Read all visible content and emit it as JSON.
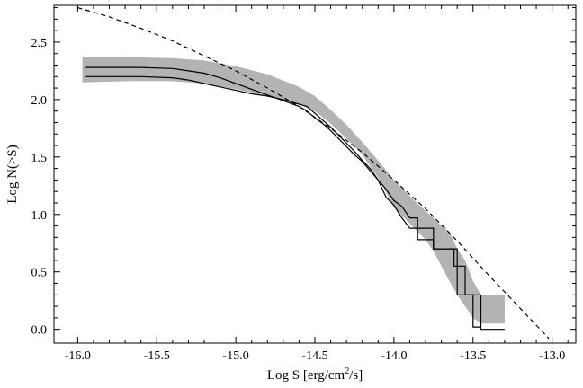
{
  "chart_data": {
    "type": "line",
    "title": "",
    "xlabel_main": "Log S [erg/cm",
    "xlabel_sup": "2",
    "xlabel_tail": "/s]",
    "ylabel": "Log N(>S)",
    "xlim": [
      -16.15,
      -12.85
    ],
    "ylim": [
      -0.12,
      2.82
    ],
    "xticks": [
      {
        "v": -16.0,
        "label": "-16.0"
      },
      {
        "v": -15.5,
        "label": "-15.5"
      },
      {
        "v": -15.0,
        "label": "-15.0"
      },
      {
        "v": -14.5,
        "label": "-14.5"
      },
      {
        "v": -14.0,
        "label": "-14.0"
      },
      {
        "v": -13.5,
        "label": "-13.5"
      },
      {
        "v": -13.0,
        "label": "-13.0"
      }
    ],
    "yticks": [
      {
        "v": 0.0,
        "label": "0.0"
      },
      {
        "v": 0.5,
        "label": "0.5"
      },
      {
        "v": 1.0,
        "label": "1.0"
      },
      {
        "v": 1.5,
        "label": "1.5"
      },
      {
        "v": 2.0,
        "label": "2.0"
      },
      {
        "v": 2.5,
        "label": "2.5"
      }
    ],
    "grid": false,
    "band": {
      "color": "#b3b3b3",
      "upper": [
        [
          -15.97,
          2.37
        ],
        [
          -15.7,
          2.37
        ],
        [
          -15.4,
          2.36
        ],
        [
          -15.2,
          2.34
        ],
        [
          -15.0,
          2.29
        ],
        [
          -14.8,
          2.22
        ],
        [
          -14.6,
          2.11
        ],
        [
          -14.5,
          2.03
        ],
        [
          -14.4,
          1.91
        ],
        [
          -14.3,
          1.78
        ],
        [
          -14.2,
          1.63
        ],
        [
          -14.1,
          1.47
        ],
        [
          -14.0,
          1.3
        ],
        [
          -13.9,
          1.16
        ],
        [
          -13.8,
          1.03
        ],
        [
          -13.75,
          0.97
        ],
        [
          -13.7,
          0.9
        ],
        [
          -13.65,
          0.85
        ],
        [
          -13.6,
          0.7
        ],
        [
          -13.55,
          0.6
        ],
        [
          -13.5,
          0.42
        ],
        [
          -13.45,
          0.3
        ],
        [
          -13.4,
          0.3
        ],
        [
          -13.35,
          0.3
        ],
        [
          -13.3,
          0.3
        ],
        [
          -13.3,
          0.05
        ]
      ],
      "lower": [
        [
          -15.97,
          2.15
        ],
        [
          -15.7,
          2.16
        ],
        [
          -15.4,
          2.16
        ],
        [
          -15.2,
          2.14
        ],
        [
          -15.0,
          2.09
        ],
        [
          -14.8,
          2.03
        ],
        [
          -14.6,
          1.96
        ],
        [
          -14.5,
          1.9
        ],
        [
          -14.4,
          1.79
        ],
        [
          -14.3,
          1.66
        ],
        [
          -14.2,
          1.52
        ],
        [
          -14.1,
          1.32
        ],
        [
          -14.0,
          1.06
        ],
        [
          -13.9,
          0.92
        ],
        [
          -13.8,
          0.78
        ],
        [
          -13.75,
          0.68
        ],
        [
          -13.7,
          0.55
        ],
        [
          -13.65,
          0.42
        ],
        [
          -13.6,
          0.3
        ],
        [
          -13.55,
          0.2
        ],
        [
          -13.5,
          0.1
        ],
        [
          -13.45,
          0.05
        ],
        [
          -13.4,
          0.05
        ],
        [
          -13.35,
          0.05
        ],
        [
          -13.3,
          0.05
        ]
      ]
    },
    "series": [
      {
        "style": "solid",
        "points": [
          [
            -15.95,
            2.28
          ],
          [
            -15.6,
            2.28
          ],
          [
            -15.4,
            2.27
          ],
          [
            -15.3,
            2.25
          ],
          [
            -15.2,
            2.23
          ],
          [
            -15.1,
            2.19
          ],
          [
            -15.0,
            2.14
          ],
          [
            -14.9,
            2.09
          ],
          [
            -14.8,
            2.04
          ],
          [
            -14.7,
            1.99
          ],
          [
            -14.6,
            1.94
          ],
          [
            -14.55,
            1.9
          ],
          [
            -14.5,
            1.84
          ],
          [
            -14.45,
            1.79
          ],
          [
            -14.4,
            1.73
          ],
          [
            -14.35,
            1.66
          ],
          [
            -14.3,
            1.59
          ],
          [
            -14.25,
            1.52
          ],
          [
            -14.2,
            1.46
          ],
          [
            -14.15,
            1.38
          ],
          [
            -14.1,
            1.3
          ],
          [
            -14.05,
            1.22
          ],
          [
            -14.0,
            1.12
          ],
          [
            -13.95,
            1.07
          ],
          [
            -13.9,
            0.97
          ],
          [
            -13.85,
            0.97
          ],
          [
            -13.85,
            0.88
          ],
          [
            -13.75,
            0.88
          ],
          [
            -13.75,
            0.7
          ],
          [
            -13.62,
            0.7
          ],
          [
            -13.62,
            0.55
          ],
          [
            -13.55,
            0.55
          ],
          [
            -13.55,
            0.3
          ],
          [
            -13.45,
            0.3
          ],
          [
            -13.45,
            0.0
          ],
          [
            -13.3,
            0.0
          ]
        ]
      },
      {
        "style": "solid",
        "points": [
          [
            -15.95,
            2.2
          ],
          [
            -15.6,
            2.2
          ],
          [
            -15.4,
            2.19
          ],
          [
            -15.3,
            2.17
          ],
          [
            -15.2,
            2.14
          ],
          [
            -15.1,
            2.11
          ],
          [
            -15.0,
            2.08
          ],
          [
            -14.9,
            2.05
          ],
          [
            -14.8,
            2.03
          ],
          [
            -14.7,
            2.0
          ],
          [
            -14.65,
            1.98
          ],
          [
            -14.6,
            1.96
          ],
          [
            -14.55,
            1.94
          ],
          [
            -14.5,
            1.88
          ],
          [
            -14.45,
            1.82
          ],
          [
            -14.4,
            1.76
          ],
          [
            -14.35,
            1.69
          ],
          [
            -14.3,
            1.62
          ],
          [
            -14.25,
            1.55
          ],
          [
            -14.2,
            1.47
          ],
          [
            -14.15,
            1.4
          ],
          [
            -14.1,
            1.3
          ],
          [
            -14.05,
            1.15
          ],
          [
            -14.0,
            1.08
          ],
          [
            -13.95,
            0.97
          ],
          [
            -13.9,
            0.88
          ],
          [
            -13.85,
            0.88
          ],
          [
            -13.85,
            0.78
          ],
          [
            -13.75,
            0.78
          ],
          [
            -13.75,
            0.7
          ],
          [
            -13.6,
            0.7
          ],
          [
            -13.6,
            0.3
          ],
          [
            -13.5,
            0.3
          ],
          [
            -13.5,
            0.02
          ],
          [
            -13.45,
            0.02
          ]
        ]
      },
      {
        "style": "dashed",
        "points": [
          [
            -16.0,
            2.8
          ],
          [
            -15.8,
            2.72
          ],
          [
            -15.6,
            2.62
          ],
          [
            -15.4,
            2.51
          ],
          [
            -15.2,
            2.38
          ],
          [
            -15.0,
            2.25
          ],
          [
            -14.8,
            2.1
          ],
          [
            -14.6,
            1.94
          ],
          [
            -14.4,
            1.75
          ],
          [
            -14.2,
            1.54
          ],
          [
            -14.0,
            1.3
          ],
          [
            -13.8,
            1.05
          ],
          [
            -13.6,
            0.77
          ],
          [
            -13.4,
            0.47
          ],
          [
            -13.2,
            0.18
          ],
          [
            -13.02,
            -0.08
          ]
        ]
      }
    ]
  }
}
